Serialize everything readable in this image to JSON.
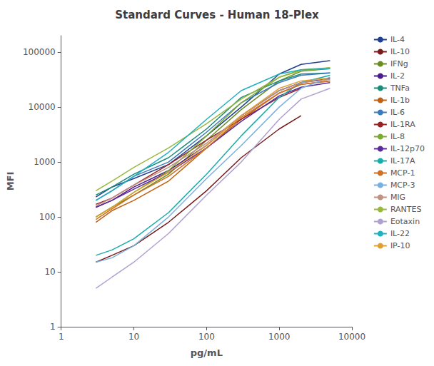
{
  "chart_data": {
    "type": "line",
    "title": "Standard Curves - Human 18-Plex",
    "xlabel": "pg/mL",
    "ylabel": "MFI",
    "log": true,
    "grid": false,
    "legend": "right",
    "xlim": [
      1,
      10000
    ],
    "ylim": [
      1,
      200000
    ],
    "xticks": [
      1,
      10,
      100,
      1000,
      10000
    ],
    "yticks": [
      1,
      10,
      100,
      1000,
      10000,
      100000
    ],
    "series": [
      {
        "name": "IL-4",
        "color": "#1f3f8f",
        "x": [
          3,
          5,
          10,
          30,
          100,
          300,
          1000,
          2000,
          5000
        ],
        "values": [
          230,
          350,
          500,
          900,
          3000,
          10000,
          40000,
          60000,
          70000
        ]
      },
      {
        "name": "IL-10",
        "color": "#7b1a1a",
        "x": [
          3,
          5,
          10,
          30,
          100,
          300,
          1000,
          2000
        ],
        "values": [
          15,
          20,
          30,
          80,
          300,
          1200,
          4000,
          7000
        ]
      },
      {
        "name": "IFNg",
        "color": "#6b8c21",
        "x": [
          3,
          5,
          10,
          30,
          100,
          300,
          1000,
          2000,
          5000
        ],
        "values": [
          100,
          150,
          250,
          600,
          2500,
          9000,
          30000,
          45000,
          50000
        ]
      },
      {
        "name": "IL-2",
        "color": "#4b1a8c",
        "x": [
          3,
          5,
          10,
          30,
          100,
          300,
          1000,
          2000,
          5000
        ],
        "values": [
          150,
          200,
          350,
          700,
          2000,
          7000,
          20000,
          28000,
          33000
        ]
      },
      {
        "name": "TNFa",
        "color": "#1a8c7a",
        "x": [
          3,
          5,
          10,
          30,
          100,
          300,
          1000,
          2000,
          5000
        ],
        "values": [
          250,
          350,
          600,
          1200,
          4000,
          15000,
          30000,
          40000,
          42000
        ]
      },
      {
        "name": "IL-1b",
        "color": "#c06010",
        "x": [
          3,
          5,
          10,
          30,
          100,
          300,
          1000,
          2000,
          5000
        ],
        "values": [
          80,
          130,
          200,
          450,
          1800,
          6000,
          18000,
          26000,
          30000
        ]
      },
      {
        "name": "IL-6",
        "color": "#3b7abf",
        "x": [
          3,
          5,
          10,
          30,
          100,
          300,
          1000,
          2000,
          5000
        ],
        "values": [
          200,
          300,
          550,
          1000,
          3500,
          12000,
          28000,
          38000,
          42000
        ]
      },
      {
        "name": "IL-1RA",
        "color": "#9b2020",
        "x": [
          3,
          5,
          10,
          30,
          100,
          300,
          1000,
          2000
        ],
        "values": [
          170,
          220,
          380,
          900,
          2500,
          6000,
          15000,
          22000
        ]
      },
      {
        "name": "IL-8",
        "color": "#7aab30",
        "x": [
          3,
          5,
          10,
          30,
          100,
          300,
          1000,
          2000,
          5000
        ],
        "values": [
          100,
          150,
          280,
          700,
          3000,
          12000,
          35000,
          48000,
          52000
        ]
      },
      {
        "name": "IL-12p70",
        "color": "#5b2a9c",
        "x": [
          3,
          5,
          10,
          30,
          100,
          300,
          1000,
          2000,
          5000
        ],
        "values": [
          150,
          200,
          320,
          650,
          1800,
          5500,
          16000,
          23000,
          28000
        ]
      },
      {
        "name": "IL-17A",
        "color": "#1aabab",
        "x": [
          3,
          5,
          10,
          30,
          100,
          300,
          1000,
          2000,
          5000
        ],
        "values": [
          20,
          25,
          40,
          120,
          600,
          3000,
          15000,
          28000,
          38000
        ]
      },
      {
        "name": "MCP-1",
        "color": "#d07020",
        "x": [
          3,
          5,
          10,
          30,
          100,
          300,
          1000,
          2000,
          5000
        ],
        "values": [
          90,
          140,
          250,
          550,
          1800,
          6500,
          18000,
          26000,
          30000
        ]
      },
      {
        "name": "MCP-3",
        "color": "#7ab0e0",
        "x": [
          3,
          5,
          10,
          30,
          100,
          300,
          1000,
          2000,
          5000
        ],
        "values": [
          15,
          18,
          30,
          100,
          500,
          2000,
          10000,
          22000,
          35000
        ]
      },
      {
        "name": "MIG",
        "color": "#c09080",
        "x": [
          3,
          5,
          10,
          30,
          100,
          300,
          1000,
          2000,
          5000
        ],
        "values": [
          160,
          220,
          380,
          800,
          2200,
          7000,
          20000,
          28000,
          32000
        ]
      },
      {
        "name": "RANTES",
        "color": "#9ab840",
        "x": [
          3,
          5,
          10,
          30,
          100,
          300,
          1000,
          2000,
          5000
        ],
        "values": [
          300,
          450,
          800,
          1800,
          5000,
          14000,
          35000,
          46000,
          52000
        ]
      },
      {
        "name": "Eotaxin",
        "color": "#b0a0d0",
        "x": [
          3,
          5,
          10,
          30,
          100,
          300,
          1000,
          2000,
          5000
        ],
        "values": [
          5,
          8,
          15,
          50,
          250,
          1000,
          6000,
          14000,
          22000
        ]
      },
      {
        "name": "IL-22",
        "color": "#20b0c0",
        "x": [
          3,
          5,
          10,
          30,
          100,
          300,
          1000,
          2000,
          5000
        ],
        "values": [
          200,
          300,
          550,
          1500,
          6000,
          20000,
          40000,
          48000,
          50000
        ]
      },
      {
        "name": "IP-10",
        "color": "#e0a030",
        "x": [
          3,
          5,
          10,
          30,
          100,
          300,
          1000,
          2000,
          5000
        ],
        "values": [
          100,
          150,
          280,
          650,
          2000,
          7000,
          22000,
          30000,
          34000
        ]
      }
    ]
  }
}
